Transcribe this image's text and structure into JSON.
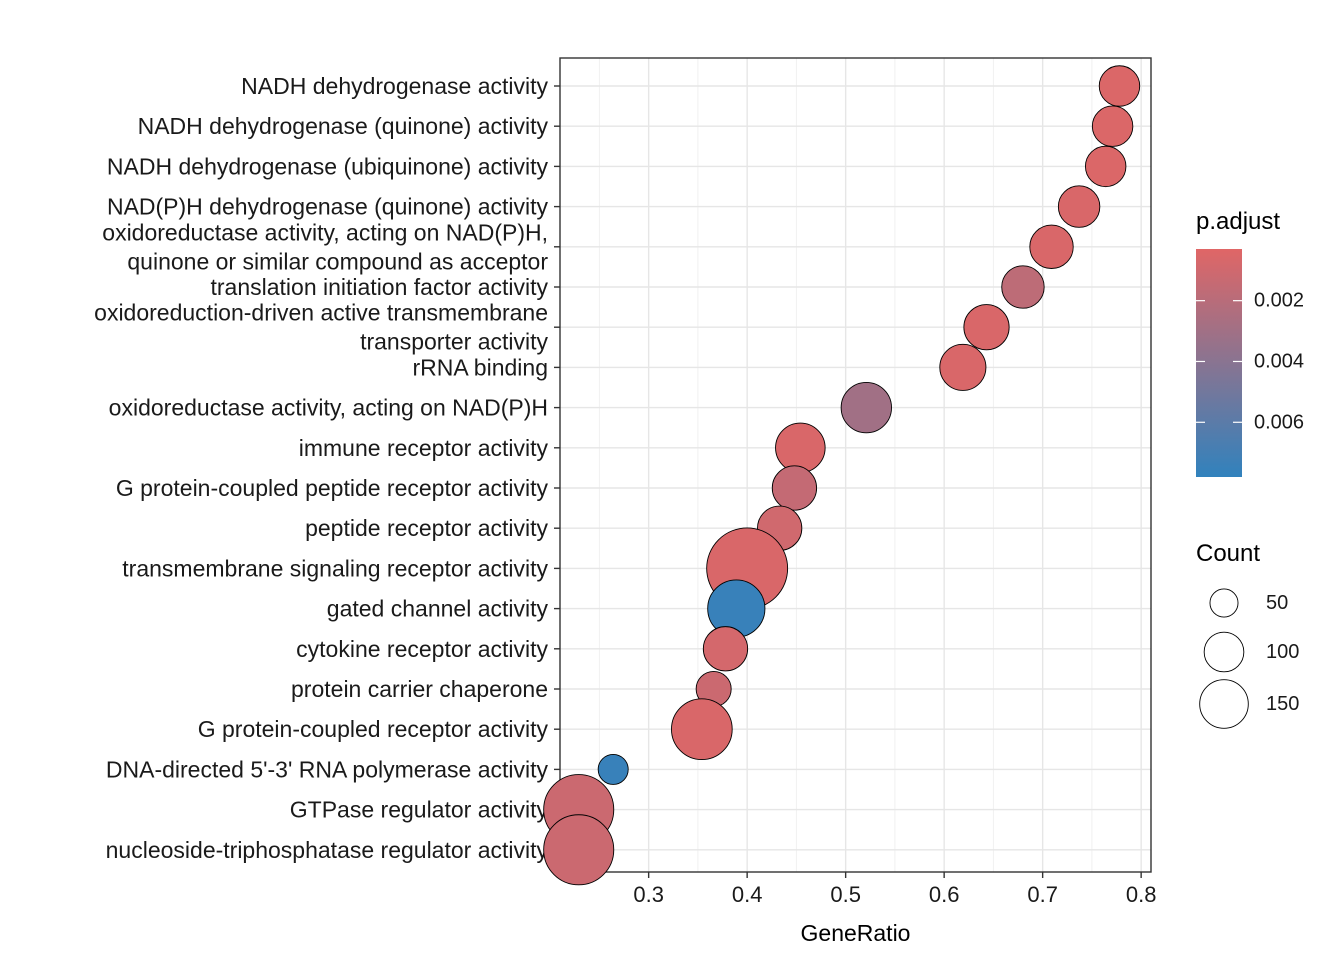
{
  "chart_data": {
    "type": "scatter",
    "title": "",
    "xlabel": "GeneRatio",
    "ylabel": "",
    "xlim": [
      0.21,
      0.81
    ],
    "x_ticks": [
      0.3,
      0.4,
      0.5,
      0.6,
      0.7,
      0.8
    ],
    "x_tick_labels": [
      "0.3",
      "0.4",
      "0.5",
      "0.6",
      "0.7",
      "0.8"
    ],
    "grid": true,
    "points": [
      {
        "category": [
          "NADH dehydrogenase activity"
        ],
        "x": 0.778,
        "count": 40,
        "p_adjust": 0.0005
      },
      {
        "category": [
          "NADH dehydrogenase (quinone) activity"
        ],
        "x": 0.771,
        "count": 40,
        "p_adjust": 0.0005
      },
      {
        "category": [
          "NADH dehydrogenase (ubiquinone) activity"
        ],
        "x": 0.764,
        "count": 40,
        "p_adjust": 0.0005
      },
      {
        "category": [
          "NAD(P)H dehydrogenase (quinone) activity"
        ],
        "x": 0.737,
        "count": 42,
        "p_adjust": 0.0006
      },
      {
        "category": [
          "oxidoreductase activity, acting on NAD(P)H,",
          "quinone or similar compound as acceptor"
        ],
        "x": 0.709,
        "count": 46,
        "p_adjust": 0.0006
      },
      {
        "category": [
          "translation initiation factor activity"
        ],
        "x": 0.68,
        "count": 44,
        "p_adjust": 0.0018
      },
      {
        "category": [
          "oxidoreduction-driven active transmembrane",
          "transporter activity"
        ],
        "x": 0.643,
        "count": 50,
        "p_adjust": 0.0006
      },
      {
        "category": [
          "rRNA binding"
        ],
        "x": 0.619,
        "count": 52,
        "p_adjust": 0.0006
      },
      {
        "category": [
          "oxidoreductase activity, acting on NAD(P)H"
        ],
        "x": 0.521,
        "count": 62,
        "p_adjust": 0.003
      },
      {
        "category": [
          "immune receptor activity"
        ],
        "x": 0.454,
        "count": 60,
        "p_adjust": 0.0006
      },
      {
        "category": [
          "G protein-coupled peptide receptor activity"
        ],
        "x": 0.448,
        "count": 48,
        "p_adjust": 0.0015
      },
      {
        "category": [
          "peptide receptor activity"
        ],
        "x": 0.433,
        "count": 48,
        "p_adjust": 0.001
      },
      {
        "category": [
          "transmembrane signaling receptor activity"
        ],
        "x": 0.4,
        "count": 160,
        "p_adjust": 0.0006
      },
      {
        "category": [
          "gated channel activity"
        ],
        "x": 0.389,
        "count": 80,
        "p_adjust": 0.0075
      },
      {
        "category": [
          "cytokine receptor activity"
        ],
        "x": 0.378,
        "count": 48,
        "p_adjust": 0.0008
      },
      {
        "category": [
          "protein carrier chaperone"
        ],
        "x": 0.366,
        "count": 30,
        "p_adjust": 0.0012
      },
      {
        "category": [
          "G protein-coupled receptor activity"
        ],
        "x": 0.354,
        "count": 90,
        "p_adjust": 0.0006
      },
      {
        "category": [
          "DNA-directed 5'-3' RNA polymerase activity"
        ],
        "x": 0.264,
        "count": 22,
        "p_adjust": 0.0075
      },
      {
        "category": [
          "GTPase regulator activity"
        ],
        "x": 0.229,
        "count": 120,
        "p_adjust": 0.0012
      },
      {
        "category": [
          "nucleoside-triphosphatase regulator activity"
        ],
        "x": 0.229,
        "count": 120,
        "p_adjust": 0.0012
      }
    ],
    "legend": {
      "color": {
        "title": "p.adjust",
        "range": [
          0.0003,
          0.0078
        ],
        "ticks": [
          0.002,
          0.004,
          0.006
        ],
        "tick_labels": [
          "0.002",
          "0.004",
          "0.006"
        ],
        "low_color": "#E06666",
        "high_color": "#3182BD"
      },
      "size": {
        "title": "Count",
        "values": [
          50,
          100,
          150
        ],
        "labels": [
          "50",
          "100",
          "150"
        ]
      }
    }
  }
}
